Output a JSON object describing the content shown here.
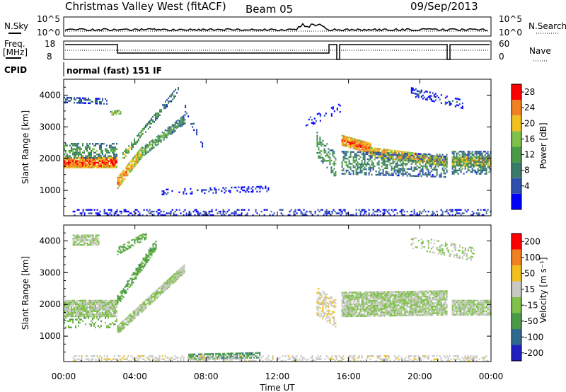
{
  "header": {
    "title": "Christmas Valley West (fitACF)",
    "beam": "Beam 05",
    "date": "09/Sep/2013"
  },
  "strip_labels": {
    "nsky": "N.Sky",
    "nsearch": "N.Search",
    "freq": "Freq.",
    "mhz": "[MHz]",
    "nave": "Nave",
    "cpid": "CPID",
    "cpid_value": "normal (fast) 151 IF"
  },
  "strip_ticks": {
    "noise_left": [
      "10^5",
      "10^0"
    ],
    "noise_right": [
      "10^5",
      "10^0"
    ],
    "freq_left": [
      "18",
      "8"
    ],
    "nave_right": [
      "60",
      "0"
    ]
  },
  "x_axis": {
    "label": "Time UT",
    "ticks": [
      "00:00",
      "04:00",
      "08:00",
      "12:00",
      "16:00",
      "20:00",
      "00:00"
    ]
  },
  "panel_axes": {
    "ylabel": "Slant Range [km]",
    "yticks": [
      "4000",
      "3000",
      "2000",
      "1000"
    ]
  },
  "colorbars": {
    "power": {
      "label": "Power [dB]",
      "ticks": [
        "28",
        "24",
        "20",
        "16",
        "12",
        "8",
        "4"
      ]
    },
    "velocity": {
      "label": "Velocity [m s⁻¹]",
      "ticks": [
        "200",
        "100",
        "50",
        "15",
        "-15",
        "-50",
        "-100",
        "-200"
      ]
    }
  },
  "colors": {
    "power": [
      "#0000ff",
      "#2e4fae",
      "#3a7a6a",
      "#4a9a4a",
      "#7ec04a",
      "#f0c020",
      "#f08020",
      "#ff0000"
    ],
    "velocity": [
      "#2020c0",
      "#2e6a8e",
      "#4a9a4a",
      "#7ec04a",
      "#c8c8c4",
      "#f0c020",
      "#f08020",
      "#ff0000"
    ]
  },
  "chart_data": [
    {
      "type": "heatmap",
      "parameter": "Power [dB]",
      "xlabel": "Time UT",
      "ylabel": "Slant Range [km]",
      "xlim": [
        0,
        24
      ],
      "ylim": [
        200,
        4500
      ],
      "color_range": [
        0,
        30
      ],
      "bands": [
        {
          "t": [
            0.0,
            3.0
          ],
          "r_start": [
            1750,
            1750
          ],
          "width": 350,
          "power": [
            27,
            27
          ],
          "density": 0.95
        },
        {
          "t": [
            3.0,
            4.4
          ],
          "r_start": [
            1100,
            2100
          ],
          "width": 380,
          "power": [
            26,
            20
          ],
          "density": 0.9
        },
        {
          "t": [
            4.4,
            6.8
          ],
          "r_start": [
            2100,
            3150
          ],
          "width": 320,
          "power": [
            18,
            12
          ],
          "density": 0.75
        },
        {
          "t": [
            3.3,
            6.4
          ],
          "r_start": [
            2000,
            4100
          ],
          "width": 260,
          "power": [
            19,
            10
          ],
          "density": 0.6
        },
        {
          "t": [
            0.0,
            3.0
          ],
          "r_start": [
            2050,
            2050
          ],
          "width": 500,
          "power": [
            15,
            13
          ],
          "density": 0.55
        },
        {
          "t": [
            0.0,
            2.5
          ],
          "r_start": [
            3800,
            3750
          ],
          "width": 200,
          "power": [
            10,
            9
          ],
          "density": 0.5
        },
        {
          "t": [
            2.6,
            3.2
          ],
          "r_start": [
            3400,
            3450
          ],
          "width": 150,
          "power": [
            20,
            20
          ],
          "density": 0.6
        },
        {
          "t": [
            6.8,
            7.8
          ],
          "r_start": [
            3500,
            2300
          ],
          "width": 250,
          "power": [
            8,
            6
          ],
          "density": 0.25
        },
        {
          "t": [
            15.6,
            17.2
          ],
          "r_start": [
            2450,
            2200
          ],
          "width": 350,
          "power": [
            26,
            25
          ],
          "density": 0.95
        },
        {
          "t": [
            17.2,
            21.5
          ],
          "r_start": [
            2100,
            1800
          ],
          "width": 320,
          "power": [
            24,
            23
          ],
          "density": 0.9
        },
        {
          "t": [
            21.8,
            24.0
          ],
          "r_start": [
            1800,
            1800
          ],
          "width": 320,
          "power": [
            23,
            24
          ],
          "density": 0.9
        },
        {
          "t": [
            15.6,
            21.5
          ],
          "r_start": [
            1550,
            1450
          ],
          "width": 750,
          "power": [
            13,
            11
          ],
          "density": 0.5
        },
        {
          "t": [
            21.8,
            24.0
          ],
          "r_start": [
            1550,
            1550
          ],
          "width": 750,
          "power": [
            13,
            12
          ],
          "density": 0.55
        },
        {
          "t": [
            14.2,
            15.3
          ],
          "r_start": [
            2100,
            1400
          ],
          "width": 800,
          "power": [
            14,
            14
          ],
          "density": 0.45
        },
        {
          "t": [
            19.5,
            22.5
          ],
          "r_start": [
            4000,
            3600
          ],
          "width": 300,
          "power": [
            6,
            6
          ],
          "density": 0.3
        },
        {
          "t": [
            5.5,
            11.5
          ],
          "r_start": [
            900,
            1000
          ],
          "width": 200,
          "power": [
            6,
            6
          ],
          "density": 0.25
        },
        {
          "t": [
            0.5,
            24.0
          ],
          "r_start": [
            250,
            250
          ],
          "width": 220,
          "power": [
            6,
            8
          ],
          "density": 0.35
        },
        {
          "t": [
            13.5,
            15.5
          ],
          "r_start": [
            3000,
            3500
          ],
          "width": 300,
          "power": [
            5,
            5
          ],
          "density": 0.15
        }
      ]
    },
    {
      "type": "heatmap",
      "parameter": "Velocity [m s⁻¹]",
      "xlabel": "Time UT",
      "ylabel": "Slant Range [km]",
      "xlim": [
        0,
        24
      ],
      "ylim": [
        200,
        4500
      ],
      "color_range": [
        -200,
        200
      ],
      "bands": [
        {
          "t": [
            0.0,
            3.0
          ],
          "r_start": [
            1650,
            1650
          ],
          "width": 550,
          "velocity": [
            0,
            0
          ],
          "density": 0.95
        },
        {
          "t": [
            3.0,
            6.8
          ],
          "r_start": [
            1100,
            3050
          ],
          "width": 300,
          "velocity": [
            0,
            0
          ],
          "density": 0.9
        },
        {
          "t": [
            3.0,
            5.2
          ],
          "r_start": [
            2000,
            3800
          ],
          "width": 350,
          "velocity": [
            -60,
            -60
          ],
          "density": 0.7
        },
        {
          "t": [
            0.5,
            2.0
          ],
          "r_start": [
            3900,
            3900
          ],
          "width": 350,
          "velocity": [
            0,
            0
          ],
          "density": 0.8
        },
        {
          "t": [
            3.0,
            4.6
          ],
          "r_start": [
            3600,
            4100
          ],
          "width": 250,
          "velocity": [
            -60,
            -40
          ],
          "density": 0.6
        },
        {
          "t": [
            15.6,
            21.5
          ],
          "r_start": [
            1650,
            1700
          ],
          "width": 800,
          "velocity": [
            0,
            0
          ],
          "density": 0.9
        },
        {
          "t": [
            21.8,
            24.0
          ],
          "r_start": [
            1700,
            1700
          ],
          "width": 500,
          "velocity": [
            0,
            0
          ],
          "density": 0.9
        },
        {
          "t": [
            14.2,
            15.3
          ],
          "r_start": [
            1700,
            1300
          ],
          "width": 900,
          "velocity": [
            40,
            40
          ],
          "density": 0.5
        },
        {
          "t": [
            7.0,
            11.0
          ],
          "r_start": [
            300,
            350
          ],
          "width": 200,
          "velocity": [
            -80,
            -80
          ],
          "density": 0.7
        },
        {
          "t": [
            0.5,
            24.0
          ],
          "r_start": [
            250,
            250
          ],
          "width": 200,
          "velocity": [
            30,
            30
          ],
          "density": 0.4
        },
        {
          "t": [
            19.5,
            23.0
          ],
          "r_start": [
            3800,
            3400
          ],
          "width": 450,
          "velocity": [
            0,
            0
          ],
          "density": 0.3
        },
        {
          "t": [
            0.0,
            3.0
          ],
          "r_start": [
            1300,
            1300
          ],
          "width": 350,
          "velocity": [
            -40,
            -40
          ],
          "density": 0.2
        }
      ]
    }
  ]
}
